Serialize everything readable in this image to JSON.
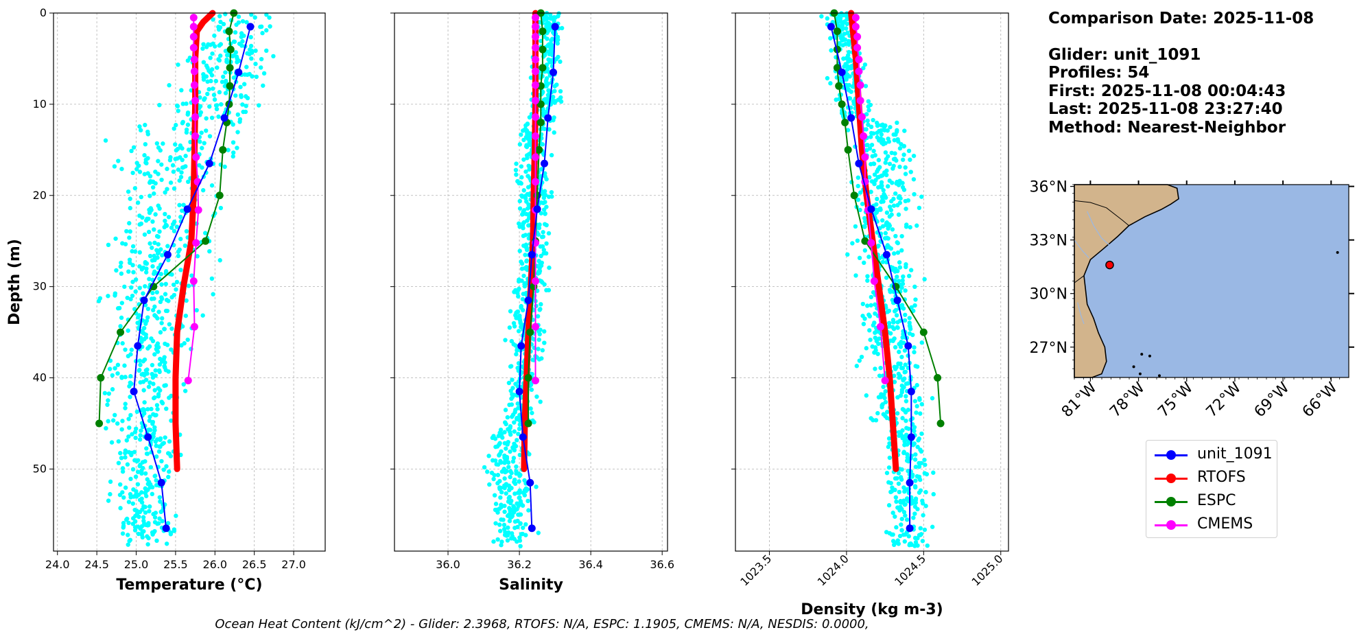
{
  "colors": {
    "glider_scatter": "#00ffff",
    "unit_1091": "#0000ff",
    "RTOFS": "#ff0000",
    "ESPC": "#008000",
    "CMEMS": "#ff00ff",
    "land": "#d2b48c",
    "ocean": "#9ab8e4"
  },
  "info": {
    "comparison_date": "Comparison Date: 2025-11-08",
    "glider": "Glider: unit_1091",
    "profiles": "Profiles: 54",
    "first": "First: 2025-11-08 00:04:43",
    "last": "Last: 2025-11-08 23:27:40",
    "method": "Method: Nearest-Neighbor"
  },
  "footer": "Ocean Heat Content (kJ/cm^2) - Glider: 2.3968,  RTOFS: N/A,  ESPC: 1.1905,  CMEMS: N/A,  NESDIS: 0.0000,",
  "map": {
    "lat_labels": [
      "36°N",
      "33°N",
      "30°N",
      "27°N"
    ],
    "lat_values": [
      36,
      33,
      30,
      27
    ],
    "lon_labels": [
      "81°W",
      "78°W",
      "75°W",
      "72°W",
      "69°W",
      "66°W"
    ],
    "lon_values": [
      -81,
      -78,
      -75,
      -72,
      -69,
      -66
    ],
    "extent": {
      "lon": [
        -82,
        -64.9
      ],
      "lat": [
        25.3,
        36.1
      ]
    },
    "glider_position": {
      "lon": -79.8,
      "lat": 31.6
    }
  },
  "chart_data": [
    {
      "type": "line",
      "panel": "temperature",
      "xlabel": "Temperature (°C)",
      "ylabel": "Depth (m)",
      "xlim": [
        23.95,
        27.4
      ],
      "ylim": [
        59,
        0
      ],
      "xticks": [
        24.0,
        24.5,
        25.0,
        25.5,
        26.0,
        26.5,
        27.0
      ],
      "xtick_labels": [
        "24.0",
        "24.5",
        "25.0",
        "25.5",
        "26.0",
        "26.5",
        "27.0"
      ],
      "yticks": [
        0,
        10,
        20,
        30,
        40,
        50
      ],
      "ytick_labels": [
        "0",
        "10",
        "20",
        "30",
        "40",
        "50"
      ],
      "grid": true,
      "scatter_range": {
        "top": [
          25.7,
          27.0
        ],
        "mid": [
          24.4,
          26.6
        ],
        "bottom": [
          24.5,
          25.7
        ]
      },
      "series": [
        {
          "name": "unit_1091",
          "depth": [
            1.5,
            6.5,
            11.5,
            16.5,
            21.5,
            26.5,
            31.5,
            36.5,
            41.5,
            46.5,
            51.5,
            56.5
          ],
          "values": [
            26.45,
            26.3,
            26.12,
            25.93,
            25.65,
            25.4,
            25.1,
            25.02,
            24.97,
            25.15,
            25.32,
            25.38
          ]
        },
        {
          "name": "RTOFS",
          "depth": [
            0,
            1,
            2,
            5,
            10,
            15,
            20,
            25,
            30,
            35,
            40,
            45,
            50
          ],
          "values": [
            25.97,
            25.85,
            25.77,
            25.75,
            25.75,
            25.74,
            25.73,
            25.7,
            25.6,
            25.52,
            25.5,
            25.5,
            25.52
          ]
        },
        {
          "name": "ESPC",
          "depth": [
            0,
            2,
            4,
            6,
            8,
            10,
            12,
            15,
            20,
            25,
            30,
            35,
            40,
            45
          ],
          "values": [
            26.24,
            26.18,
            26.2,
            26.19,
            26.19,
            26.18,
            26.15,
            26.1,
            26.06,
            25.88,
            25.22,
            24.8,
            24.55,
            24.53
          ]
        },
        {
          "name": "CMEMS",
          "depth": [
            0.5,
            1.5,
            2.6,
            3.8,
            5.1,
            6.4,
            7.9,
            9.6,
            11.4,
            13.5,
            15.8,
            18.5,
            21.6,
            25.2,
            29.4,
            34.4,
            40.3
          ],
          "values": [
            25.73,
            25.73,
            25.73,
            25.73,
            25.74,
            25.74,
            25.74,
            25.75,
            25.75,
            25.75,
            25.76,
            25.78,
            25.79,
            25.76,
            25.73,
            25.74,
            25.66
          ]
        }
      ]
    },
    {
      "type": "line",
      "panel": "salinity",
      "xlabel": "Salinity",
      "xlim": [
        35.85,
        36.615
      ],
      "ylim": [
        59,
        0
      ],
      "xticks": [
        36.0,
        36.2,
        36.4,
        36.6
      ],
      "xtick_labels": [
        "36.0",
        "36.2",
        "36.4",
        "36.6"
      ],
      "yticks": [
        0,
        10,
        20,
        30,
        40,
        50
      ],
      "grid": true,
      "scatter_range": {
        "top": [
          36.24,
          36.34
        ],
        "mid": [
          36.17,
          36.32
        ],
        "bottom": [
          36.09,
          36.27
        ]
      },
      "series": [
        {
          "name": "unit_1091",
          "depth": [
            1.5,
            6.5,
            11.5,
            16.5,
            21.5,
            26.5,
            31.5,
            36.5,
            41.5,
            46.5,
            51.5,
            56.5
          ],
          "values": [
            36.3,
            36.295,
            36.28,
            36.27,
            36.25,
            36.235,
            36.225,
            36.205,
            36.2,
            36.21,
            36.23,
            36.235
          ]
        },
        {
          "name": "RTOFS",
          "depth": [
            0,
            5,
            10,
            15,
            20,
            25,
            30,
            35,
            40,
            45,
            50
          ],
          "values": [
            36.245,
            36.245,
            36.245,
            36.243,
            36.24,
            36.238,
            36.232,
            36.225,
            36.22,
            36.215,
            36.213
          ]
        },
        {
          "name": "ESPC",
          "depth": [
            0,
            2,
            4,
            6,
            8,
            10,
            12,
            15,
            20,
            25,
            30,
            35,
            40,
            45
          ],
          "values": [
            36.26,
            36.265,
            36.265,
            36.265,
            36.26,
            36.26,
            36.26,
            36.255,
            36.25,
            36.245,
            36.24,
            36.23,
            36.225,
            36.225
          ]
        },
        {
          "name": "CMEMS",
          "depth": [
            0.5,
            1.5,
            2.6,
            3.8,
            5.1,
            6.4,
            7.9,
            9.6,
            11.4,
            13.5,
            15.8,
            18.5,
            21.6,
            25.2,
            29.4,
            34.4,
            40.3
          ],
          "values": [
            36.245,
            36.245,
            36.245,
            36.245,
            36.245,
            36.245,
            36.245,
            36.245,
            36.245,
            36.245,
            36.245,
            36.245,
            36.245,
            36.245,
            36.245,
            36.245,
            36.245
          ]
        }
      ]
    },
    {
      "type": "line",
      "panel": "density",
      "xlabel": "Density (kg m-3)",
      "xlim": [
        1023.28,
        1025.05
      ],
      "ylim": [
        59,
        0
      ],
      "xticks": [
        1023.5,
        1024.0,
        1024.5,
        1025.0
      ],
      "xtick_labels": [
        "1023.5",
        "1024.0",
        "1024.5",
        "1025.0"
      ],
      "yticks": [
        0,
        10,
        20,
        30,
        40,
        50
      ],
      "grid": true,
      "scatter_range": {
        "top": [
          1023.78,
          1024.08
        ],
        "mid": [
          1023.95,
          1024.5
        ],
        "bottom": [
          1024.2,
          1024.6
        ]
      },
      "series": [
        {
          "name": "unit_1091",
          "depth": [
            1.5,
            6.5,
            11.5,
            16.5,
            21.5,
            26.5,
            31.5,
            36.5,
            41.5,
            46.5,
            51.5,
            56.5
          ],
          "values": [
            1023.9,
            1023.97,
            1024.03,
            1024.08,
            1024.16,
            1024.26,
            1024.33,
            1024.4,
            1024.42,
            1024.42,
            1024.41,
            1024.41
          ]
        },
        {
          "name": "RTOFS",
          "depth": [
            0,
            5,
            10,
            15,
            20,
            25,
            30,
            35,
            40,
            45,
            50
          ],
          "values": [
            1024.03,
            1024.06,
            1024.08,
            1024.1,
            1024.13,
            1024.17,
            1024.21,
            1024.25,
            1024.28,
            1024.3,
            1024.32
          ]
        },
        {
          "name": "ESPC",
          "depth": [
            0,
            2,
            4,
            6,
            8,
            10,
            12,
            15,
            20,
            25,
            30,
            35,
            40,
            45
          ],
          "values": [
            1023.92,
            1023.94,
            1023.94,
            1023.94,
            1023.95,
            1023.97,
            1023.99,
            1024.01,
            1024.05,
            1024.12,
            1024.32,
            1024.5,
            1024.59,
            1024.61
          ]
        },
        {
          "name": "CMEMS",
          "depth": [
            0.5,
            1.5,
            2.6,
            3.8,
            5.1,
            6.4,
            7.9,
            9.6,
            11.4,
            13.5,
            15.8,
            18.5,
            21.6,
            25.2,
            29.4,
            34.4,
            40.3
          ],
          "values": [
            1024.06,
            1024.06,
            1024.07,
            1024.07,
            1024.08,
            1024.08,
            1024.09,
            1024.09,
            1024.1,
            1024.11,
            1024.12,
            1024.12,
            1024.14,
            1024.16,
            1024.18,
            1024.22,
            1024.25
          ]
        }
      ]
    }
  ]
}
